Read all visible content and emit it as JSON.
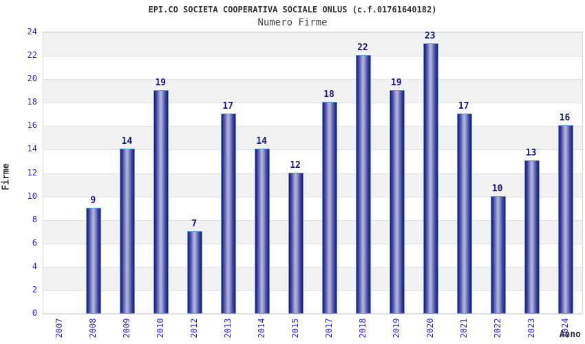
{
  "title": "EPI.CO SOCIETA COOPERATIVA SOCIALE ONLUS (c.f.01761640182)",
  "subtitle": "Numero Firme",
  "chart_data": {
    "type": "bar",
    "title": "EPI.CO SOCIETA COOPERATIVA SOCIALE ONLUS (c.f.01761640182)",
    "subtitle": "Numero Firme",
    "categories": [
      "2007",
      "2008",
      "2009",
      "2010",
      "2012",
      "2013",
      "2014",
      "2015",
      "2017",
      "2018",
      "2019",
      "2020",
      "2021",
      "2022",
      "2023",
      "2024"
    ],
    "values": [
      0,
      9,
      14,
      19,
      7,
      17,
      14,
      12,
      18,
      22,
      19,
      23,
      17,
      10,
      13,
      16
    ],
    "xlabel": "Anno",
    "ylabel": "Firme",
    "ylim": [
      0,
      24
    ],
    "ytick_step": 2,
    "grid": "horizontal gridlines every 2 units with alternating gray/white bands",
    "legend": "none",
    "bar_value_labels": true,
    "x_tick_rotation": 90
  },
  "colors": {
    "tick_label_blue": "#2a2acc",
    "value_label_navy": "#15157d",
    "title_color": "#333333",
    "subtitle_color": "#474747",
    "axis_title_color": "#333333",
    "band_gray": "#f2f2f2",
    "band_white": "#ffffff",
    "gridline": "#e2e2e2",
    "plot_border": "#d9d9d9",
    "bar_border_lightblue": "#5b9bd8",
    "bar_edge_dark": "#191978",
    "bar_mid": "#3c3c9e",
    "bar_highlight": "#aab2d8"
  }
}
